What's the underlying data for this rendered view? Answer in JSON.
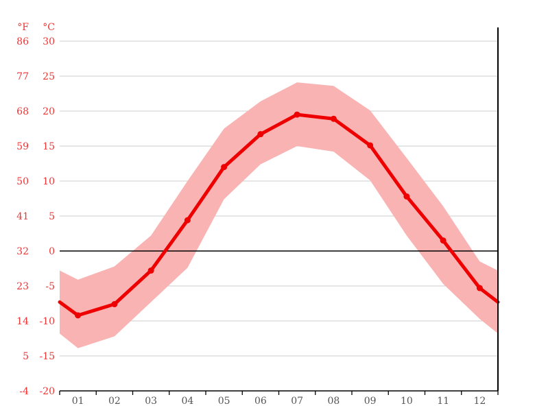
{
  "chart": {
    "colors": {
      "line": "#ee0000",
      "band": "#f9b3b3",
      "tick_label": "#ee3333",
      "month_label": "#555555",
      "gridline": "#cccccc",
      "axis": "#000000",
      "background": "#ffffff"
    }
  },
  "chart_data": {
    "type": "line",
    "x_categories": [
      "01",
      "02",
      "03",
      "04",
      "05",
      "06",
      "07",
      "08",
      "09",
      "10",
      "11",
      "12"
    ],
    "y_axis_celsius": {
      "label": "°C",
      "ticks": [
        30,
        25,
        20,
        15,
        10,
        5,
        0,
        -5,
        -10,
        -15,
        -20
      ],
      "range": [
        -20,
        30
      ]
    },
    "y_axis_fahrenheit": {
      "label": "°F",
      "ticks": [
        86,
        77,
        68,
        59,
        50,
        41,
        32,
        23,
        14,
        5,
        -4
      ]
    },
    "series": [
      {
        "name": "mean",
        "values": [
          -9.2,
          -7.6,
          -2.8,
          4.4,
          12.0,
          16.7,
          19.5,
          18.9,
          15.1,
          7.8,
          1.5,
          -5.3
        ]
      },
      {
        "name": "max",
        "values": [
          -4.1,
          -2.2,
          2.2,
          10.0,
          17.5,
          21.4,
          24.1,
          23.6,
          20.1,
          13.3,
          6.4,
          -1.5
        ]
      },
      {
        "name": "min",
        "values": [
          -13.9,
          -12.2,
          -7.3,
          -2.4,
          7.4,
          12.4,
          15.0,
          14.2,
          10.1,
          2.2,
          -4.7,
          -9.7
        ]
      }
    ],
    "edge_values": {
      "mean": -7.3,
      "max": -2.8,
      "min": -11.8
    },
    "grid": true,
    "legend": false,
    "zero_line": true
  }
}
